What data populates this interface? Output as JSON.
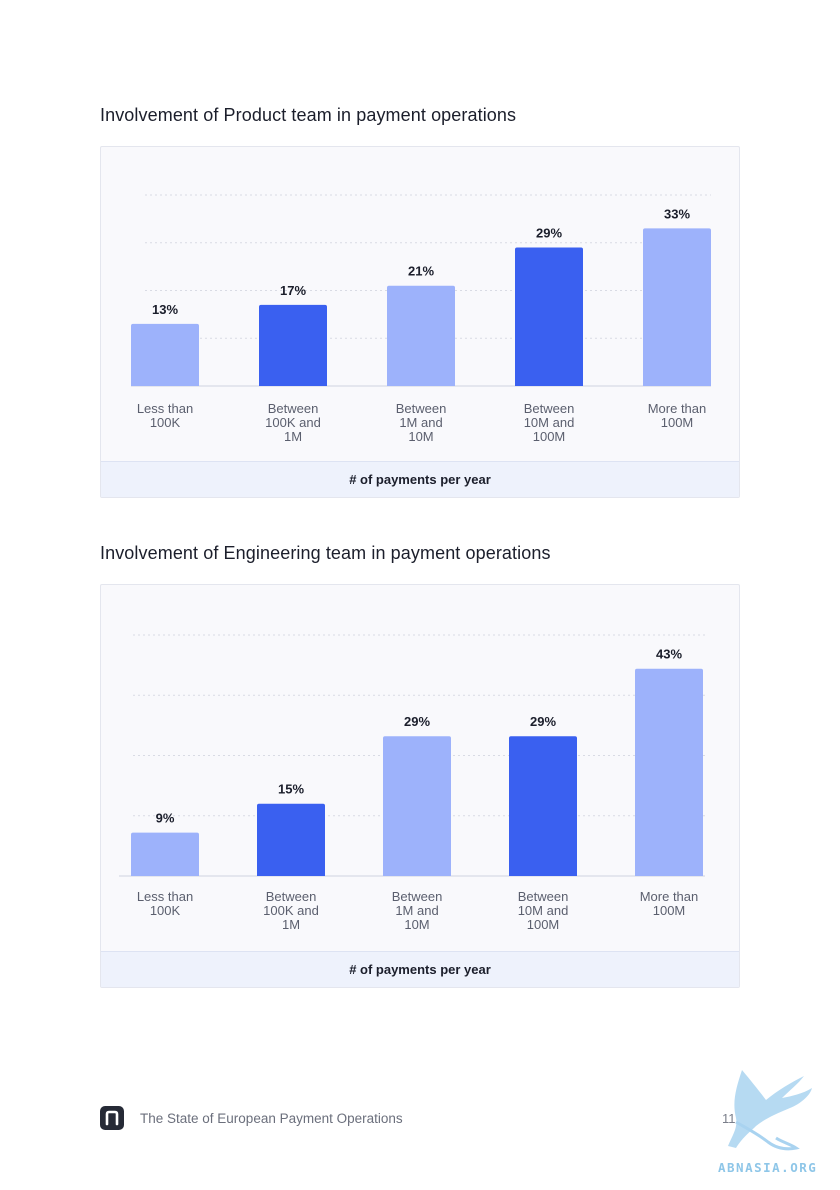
{
  "page": {
    "footer_text": "The State of European Payment Operations",
    "page_number": "11",
    "watermark": "ABNASIA.ORG",
    "logo_icon": "brand-logo-icon"
  },
  "colors": {
    "bar_light": "#9db2fb",
    "bar_dark": "#3a60f0",
    "grid": "#d9dbe4",
    "value_text": "#1b1e2b"
  },
  "chart_data": [
    {
      "type": "bar",
      "title": "Involvement of Product team in payment operations",
      "xlabel": "# of payments per year",
      "ylabel": "",
      "categories": [
        "Less than\n100K",
        "Between\n100K and\n1M",
        "Between\n1M and\n10M",
        "Between\n10M and\n100M",
        "More than\n100M"
      ],
      "values": [
        13,
        17,
        21,
        29,
        33
      ],
      "value_labels": [
        "13%",
        "17%",
        "21%",
        "29%",
        "33%"
      ],
      "bar_colors": [
        "#9db2fb",
        "#3a60f0",
        "#9db2fb",
        "#3a60f0",
        "#9db2fb"
      ],
      "ylim": [
        0,
        40
      ],
      "grid": true,
      "legend": "none"
    },
    {
      "type": "bar",
      "title": "Involvement of Engineering team in payment operations",
      "xlabel": "# of payments per year",
      "ylabel": "",
      "categories": [
        "Less than\n100K",
        "Between\n100K and\n1M",
        "Between\n1M and\n10M",
        "Between\n10M and\n100M",
        "More than\n100M"
      ],
      "values": [
        9,
        15,
        29,
        29,
        43
      ],
      "value_labels": [
        "9%",
        "15%",
        "29%",
        "29%",
        "43%"
      ],
      "bar_colors": [
        "#9db2fb",
        "#3a60f0",
        "#9db2fb",
        "#3a60f0",
        "#9db2fb"
      ],
      "ylim": [
        0,
        50
      ],
      "grid": true,
      "legend": "none"
    }
  ]
}
